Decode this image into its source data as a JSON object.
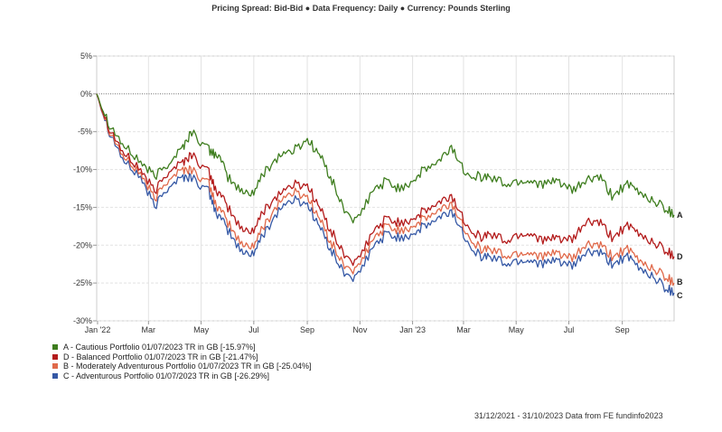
{
  "header": {
    "pricing_label": "Pricing Spread:",
    "pricing_value": "Bid-Bid",
    "freq_label": "Data Frequency:",
    "freq_value": "Daily",
    "currency_label": "Currency:",
    "currency_value": "Pounds Sterling"
  },
  "legend": [
    {
      "text": "A - Cautious Portfolio 01/07/2023 TR in GB [-15.97%]",
      "color": "#3e7d1e"
    },
    {
      "text": "D - Balanced Portfolio 01/07/2023 TR in GB [-21.47%]",
      "color": "#b31b1b"
    },
    {
      "text": "B - Moderately Adventurous Portfolio 01/07/2023 TR in GB [-25.04%]",
      "color": "#e0694a"
    },
    {
      "text": "C - Adventurous Portfolio 01/07/2023 TR in GB [-26.29%]",
      "color": "#3558a5"
    }
  ],
  "footer": {
    "text": "31/12/2021 - 31/10/2023 Data from FE fundinfo2023"
  },
  "chart_data": {
    "type": "line",
    "y_unit": "%",
    "ylim": [
      -30,
      5
    ],
    "y_ticks": [
      5,
      0,
      -5,
      -10,
      -15,
      -20,
      -25,
      -30
    ],
    "y_tick_labels": [
      "5%",
      "0%",
      "-5%",
      "-10%",
      "-15%",
      "-20%",
      "-25%",
      "-30%"
    ],
    "xlim": [
      "2021-12-31",
      "2023-10-31"
    ],
    "x_ticks": [
      "2022-01-01",
      "2022-03-01",
      "2022-05-01",
      "2022-07-01",
      "2022-09-01",
      "2022-11-01",
      "2023-01-01",
      "2023-03-01",
      "2023-05-01",
      "2023-07-01",
      "2023-09-01"
    ],
    "x_tick_labels": [
      "Jan '22",
      "Mar",
      "May",
      "Jul",
      "Sep",
      "Nov",
      "Jan '23",
      "Mar",
      "May",
      "Jul",
      "Sep"
    ],
    "grid": true,
    "legend_position": "bottom-left",
    "x": [
      "2021-12-31",
      "2022-01-15",
      "2022-02-01",
      "2022-02-20",
      "2022-03-08",
      "2022-03-25",
      "2022-04-10",
      "2022-04-20",
      "2022-05-10",
      "2022-05-20",
      "2022-06-01",
      "2022-06-17",
      "2022-07-01",
      "2022-07-15",
      "2022-08-01",
      "2022-08-16",
      "2022-09-01",
      "2022-09-15",
      "2022-09-28",
      "2022-10-12",
      "2022-10-28",
      "2022-11-15",
      "2022-12-01",
      "2022-12-15",
      "2023-01-01",
      "2023-01-15",
      "2023-02-01",
      "2023-02-15",
      "2023-03-01",
      "2023-03-20",
      "2023-04-01",
      "2023-04-20",
      "2023-05-05",
      "2023-05-20",
      "2023-06-05",
      "2023-06-20",
      "2023-07-05",
      "2023-07-20",
      "2023-08-05",
      "2023-08-20",
      "2023-09-05",
      "2023-09-20",
      "2023-10-05",
      "2023-10-20",
      "2023-10-31"
    ],
    "series": [
      {
        "name": "A",
        "color": "#3e7d1e",
        "values": [
          0,
          -4,
          -7,
          -9,
          -11,
          -9,
          -7,
          -5,
          -7.5,
          -8,
          -11,
          -13,
          -13,
          -10,
          -8,
          -7.5,
          -6,
          -8,
          -11,
          -15,
          -17,
          -13,
          -11.5,
          -12.5,
          -11.5,
          -10,
          -9,
          -7,
          -10,
          -11,
          -11,
          -12,
          -11.5,
          -11.5,
          -12,
          -11.5,
          -13,
          -11.5,
          -11,
          -13.5,
          -12,
          -13,
          -14,
          -15,
          -16
        ]
      },
      {
        "name": "D",
        "color": "#b31b1b",
        "values": [
          0,
          -4.5,
          -8,
          -10,
          -13,
          -10,
          -9,
          -8,
          -10.5,
          -13,
          -15,
          -18,
          -18,
          -15,
          -13,
          -12,
          -12,
          -15,
          -18,
          -21,
          -22.5,
          -18.5,
          -16.5,
          -17,
          -16.5,
          -15.5,
          -14.5,
          -13.5,
          -16.5,
          -19,
          -18.5,
          -19.5,
          -18.5,
          -18.5,
          -19.5,
          -19,
          -19.5,
          -17,
          -17,
          -19,
          -17.5,
          -18.5,
          -19.5,
          -20.5,
          -21.5
        ]
      },
      {
        "name": "B",
        "color": "#e0694a",
        "values": [
          0,
          -4.8,
          -8.5,
          -10.5,
          -14,
          -11,
          -10,
          -10,
          -12,
          -15,
          -17,
          -20,
          -20,
          -17,
          -14,
          -13,
          -13.5,
          -16.5,
          -19.5,
          -22.5,
          -23.5,
          -19.5,
          -17.5,
          -18,
          -17.5,
          -16.5,
          -15.5,
          -14.5,
          -17.5,
          -20.5,
          -20.5,
          -21.5,
          -21,
          -21,
          -21.5,
          -21,
          -22,
          -20,
          -20,
          -21.5,
          -20.5,
          -22,
          -23,
          -24,
          -25
        ]
      },
      {
        "name": "C",
        "color": "#3558a5",
        "values": [
          0,
          -5,
          -9,
          -11,
          -15,
          -12,
          -11,
          -11,
          -13,
          -16,
          -18,
          -21,
          -21,
          -18,
          -15,
          -14,
          -14.5,
          -17.5,
          -20.5,
          -23.5,
          -24.5,
          -20.5,
          -18.5,
          -19,
          -18.5,
          -17.5,
          -16.5,
          -15.5,
          -18.5,
          -21.5,
          -21.5,
          -22.5,
          -22,
          -22,
          -22.5,
          -22,
          -23,
          -21,
          -21,
          -22.5,
          -21.5,
          -23,
          -24,
          -25.5,
          -26.3
        ]
      }
    ]
  }
}
